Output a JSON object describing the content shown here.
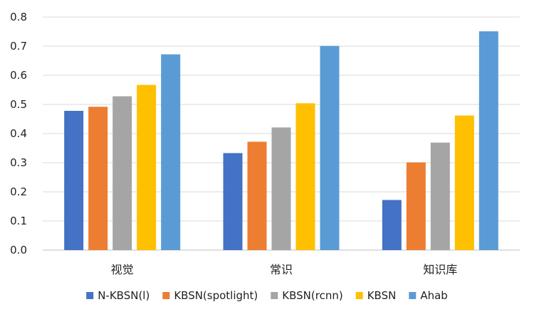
{
  "chart_data": {
    "type": "bar",
    "categories": [
      "视觉",
      "常识",
      "知识库"
    ],
    "series": [
      {
        "name": "N-KBSN(l)",
        "color": "#4472C4",
        "values": [
          0.478,
          0.333,
          0.172
        ]
      },
      {
        "name": "KBSN(spotlight)",
        "color": "#ED7D31",
        "values": [
          0.492,
          0.372,
          0.301
        ]
      },
      {
        "name": "KBSN(rcnn)",
        "color": "#A5A5A5",
        "values": [
          0.528,
          0.421,
          0.369
        ]
      },
      {
        "name": "KBSN",
        "color": "#FFC000",
        "values": [
          0.567,
          0.504,
          0.462
        ]
      },
      {
        "name": "Ahab",
        "color": "#5B9BD5",
        "values": [
          0.672,
          0.701,
          0.751
        ]
      }
    ],
    "y_ticks": [
      "0.0",
      "0.1",
      "0.2",
      "0.3",
      "0.4",
      "0.5",
      "0.6",
      "0.7",
      "0.8"
    ],
    "ylim": [
      0,
      0.8
    ],
    "grid": true,
    "legend_position": "bottom",
    "title": "",
    "xlabel": "",
    "ylabel": ""
  }
}
